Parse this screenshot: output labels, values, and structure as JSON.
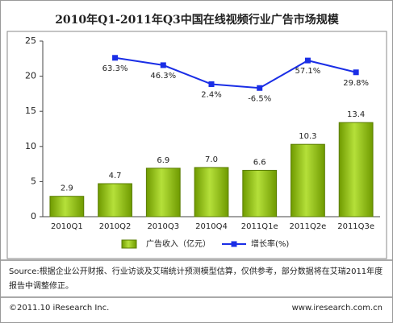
{
  "chart_data": {
    "type": "bar",
    "title": "2010年Q1-2011年Q3中国在线视频行业广告市场规模",
    "categories": [
      "2010Q1",
      "2010Q2",
      "2010Q3",
      "2010Q4",
      "2011Q1e",
      "2011Q2e",
      "2011Q3e"
    ],
    "ylim": [
      0,
      25
    ],
    "yticks": [
      0,
      5,
      10,
      15,
      20,
      25
    ],
    "y2lim": [
      -304,
      102
    ],
    "series": [
      {
        "name": "广告收入（亿元）",
        "type": "bar",
        "color": "#99cc00",
        "values": [
          2.9,
          4.7,
          6.9,
          7.0,
          6.6,
          10.3,
          13.4
        ],
        "value_labels": [
          "2.9",
          "4.7",
          "6.9",
          "7.0",
          "6.6",
          "10.3",
          "13.4"
        ]
      },
      {
        "name": "增长率(%)",
        "type": "line",
        "axis": "y2",
        "color": "#1a2ee6",
        "values": [
          null,
          63.3,
          46.3,
          2.4,
          -6.5,
          57.1,
          29.8
        ],
        "value_labels": [
          null,
          "63.3%",
          "46.3%",
          "2.4%",
          "-6.5%",
          "57.1%",
          "29.8%"
        ]
      }
    ],
    "source": "Source:根据企业公开财报、行业访谈及艾瑞统计预测模型估算，仅供参考，部分数据将在艾瑞2011年度报告中调整修正。",
    "copyright": "©2011.10 iResearch Inc.",
    "website": "www.iresearch.com.cn"
  }
}
